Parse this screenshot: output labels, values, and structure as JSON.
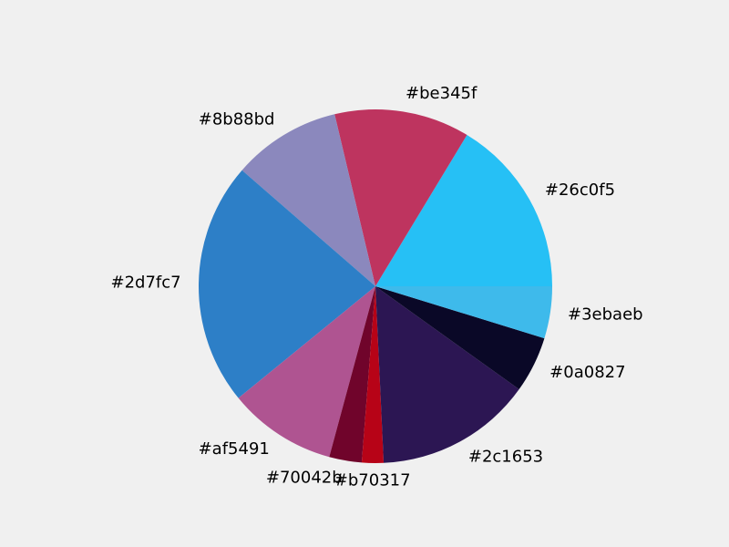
{
  "chart_data": {
    "type": "pie",
    "title": "",
    "start_angle_deg": 0,
    "direction": "counterclockwise",
    "slices": [
      {
        "label": "#26c0f5",
        "value": 16.5,
        "color": "#26c0f5"
      },
      {
        "label": "#be345f",
        "value": 12.5,
        "color": "#be345f"
      },
      {
        "label": "#8b88bd",
        "value": 10.0,
        "color": "#8b88bd"
      },
      {
        "label": "#2d7fc7",
        "value": 22.5,
        "color": "#2d7fc7"
      },
      {
        "label": "#af5491",
        "value": 10.0,
        "color": "#af5491"
      },
      {
        "label": "#70042b",
        "value": 3.0,
        "color": "#70042b"
      },
      {
        "label": "#b70317",
        "value": 2.0,
        "color": "#b70317"
      },
      {
        "label": "#2c1653",
        "value": 14.5,
        "color": "#2c1653"
      },
      {
        "label": "#0a0827",
        "value": 5.2,
        "color": "#0a0827"
      },
      {
        "label": "#3ebaeb",
        "value": 4.8,
        "color": "#3ebaeb"
      }
    ]
  }
}
